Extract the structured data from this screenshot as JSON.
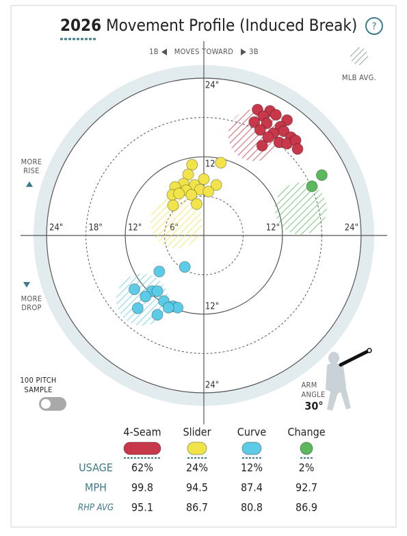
{
  "header": {
    "year": "2026",
    "title": "Movement Profile (Induced Break)",
    "help": "?"
  },
  "direction": {
    "left": "1B",
    "text": "MOVES TOWARD",
    "right": "3B"
  },
  "legend_avg": "MLB AVG.",
  "side_labels": {
    "rise": [
      "MORE",
      "RISE"
    ],
    "drop": [
      "MORE",
      "DROP"
    ]
  },
  "sample": [
    "100 PITCH",
    "SAMPLE"
  ],
  "arm": {
    "label": [
      "ARM",
      "ANGLE"
    ],
    "value": "30°"
  },
  "chart_data": {
    "type": "scatter",
    "xlim": [
      -26,
      26
    ],
    "ylim": [
      -26,
      26
    ],
    "xticks": [
      {
        "value": -24,
        "label": "24\""
      },
      {
        "value": -18,
        "label": "18\""
      },
      {
        "value": -12,
        "label": "12\""
      },
      {
        "value": -6,
        "label": "6\""
      },
      {
        "value": 12,
        "label": "12\""
      },
      {
        "value": 24,
        "label": "24\""
      }
    ],
    "yticks": [
      {
        "value": 24,
        "label": "24\""
      },
      {
        "value": 12,
        "label": "12\""
      },
      {
        "value": -12,
        "label": "12\""
      },
      {
        "value": -24,
        "label": "24\""
      }
    ],
    "series": [
      {
        "name": "4-Seam",
        "color": "#c8384b",
        "mlb_avg_x": 7.7,
        "mlb_avg_y": 15.3,
        "x": [
          8.2,
          10.1,
          9.1,
          11.0,
          12.7,
          7.7,
          9.6,
          11.7,
          8.6,
          10.6,
          12.2,
          13.3,
          9.8,
          11.5,
          8.9,
          12.7,
          14.0,
          14.3
        ],
        "y": [
          19.2,
          19.0,
          18.2,
          18.4,
          17.6,
          17.3,
          17.1,
          16.6,
          16.1,
          15.6,
          15.9,
          15.0,
          15.0,
          14.2,
          13.7,
          14.0,
          14.5,
          13.2
        ]
      },
      {
        "name": "Slider",
        "color": "#f0e44a",
        "mlb_avg_x": -4.2,
        "mlb_avg_y": 2.0,
        "x": [
          -1.8,
          2.6,
          -2.4,
          0,
          -3.1,
          -1.4,
          1.9,
          -4.4,
          -2.7,
          -0.6,
          -4.8,
          -3.8,
          -1.9,
          0.7,
          -1.1,
          -4.7
        ],
        "y": [
          10.8,
          11.1,
          9.3,
          8.6,
          7.9,
          7.7,
          7.7,
          7.4,
          6.9,
          7.0,
          6.2,
          6.4,
          6.2,
          6.7,
          4.8,
          4.6
        ]
      },
      {
        "name": "Curve",
        "color": "#5ccbe8",
        "mlb_avg_x": -9.4,
        "mlb_avg_y": -9.8,
        "x": [
          -2.9,
          -6.8,
          -10.6,
          -7.9,
          -7.1,
          -8.9,
          -6.1,
          -4.7,
          -4.0,
          -5.4,
          -10.1,
          -7.1
        ],
        "y": [
          -4.8,
          -5.5,
          -8.2,
          -8.5,
          -8.5,
          -9.3,
          -10.0,
          -10.8,
          -11.0,
          -11.0,
          -11.1,
          -12.1
        ]
      },
      {
        "name": "Change",
        "color": "#5cb85c",
        "mlb_avg_x": 14.8,
        "mlb_avg_y": 4.1,
        "x": [
          18.0,
          16.5
        ],
        "y": [
          9.2,
          7.5
        ]
      }
    ]
  },
  "summary": {
    "rows": [
      {
        "label": "USAGE",
        "values": [
          "62%",
          "24%",
          "12%",
          "2%"
        ]
      },
      {
        "label": "MPH",
        "values": [
          "99.8",
          "94.5",
          "87.4",
          "92.7"
        ]
      },
      {
        "label": "RHP AVG",
        "values": [
          "95.1",
          "86.7",
          "80.8",
          "86.9"
        ]
      }
    ]
  }
}
